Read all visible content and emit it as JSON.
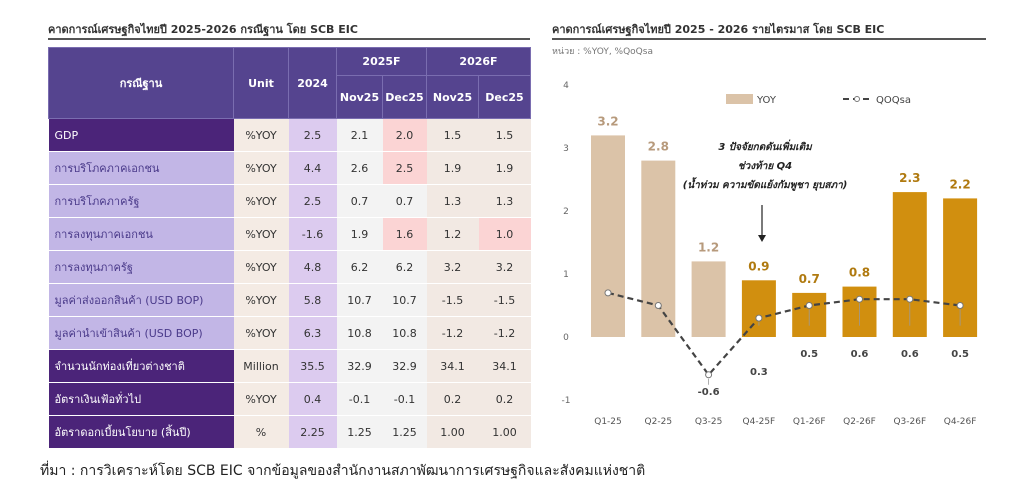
{
  "table": {
    "title": "คาดการณ์เศรษฐกิจไทยปี 2025-2026 กรณีฐาน โดย SCB EIC",
    "headers": {
      "case": "กรณีฐาน",
      "unit": "Unit",
      "y2024": "2024",
      "f2025": "2025F",
      "f2026": "2026F",
      "nov": "Nov25",
      "dec": "Dec25"
    },
    "rows": [
      {
        "label": "GDP",
        "unit": "%YOY",
        "v2024": "2.5",
        "v": [
          "2.1",
          "2.0",
          "1.5",
          "1.5"
        ],
        "style": "dark",
        "hl": [
          1
        ]
      },
      {
        "label": "การบริโภคภาคเอกชน",
        "unit": "%YOY",
        "v2024": "4.4",
        "v": [
          "2.6",
          "2.5",
          "1.9",
          "1.9"
        ],
        "style": "light",
        "hl": [
          1
        ]
      },
      {
        "label": "การบริโภคภาครัฐ",
        "unit": "%YOY",
        "v2024": "2.5",
        "v": [
          "0.7",
          "0.7",
          "1.3",
          "1.3"
        ],
        "style": "light",
        "hl": []
      },
      {
        "label": "การลงทุนภาคเอกชน",
        "unit": "%YOY",
        "v2024": "-1.6",
        "v": [
          "1.9",
          "1.6",
          "1.2",
          "1.0"
        ],
        "style": "light",
        "hl": [
          1,
          3
        ]
      },
      {
        "label": "การลงทุนภาครัฐ",
        "unit": "%YOY",
        "v2024": "4.8",
        "v": [
          "6.2",
          "6.2",
          "3.2",
          "3.2"
        ],
        "style": "light",
        "hl": []
      },
      {
        "label": "มูลค่าส่งออกสินค้า (USD BOP)",
        "unit": "%YOY",
        "v2024": "5.8",
        "v": [
          "10.7",
          "10.7",
          "-1.5",
          "-1.5"
        ],
        "style": "light",
        "hl": []
      },
      {
        "label": "มูลค่านำเข้าสินค้า (USD BOP)",
        "unit": "%YOY",
        "v2024": "6.3",
        "v": [
          "10.8",
          "10.8",
          "-1.2",
          "-1.2"
        ],
        "style": "light",
        "hl": []
      },
      {
        "label": "จำนวนนักท่องเที่ยวต่างชาติ",
        "unit": "Million",
        "v2024": "35.5",
        "v": [
          "32.9",
          "32.9",
          "34.1",
          "34.1"
        ],
        "style": "dark",
        "hl": []
      },
      {
        "label": "อัตราเงินเฟ้อทั่วไป",
        "unit": "%YOY",
        "v2024": "0.4",
        "v": [
          "-0.1",
          "-0.1",
          "0.2",
          "0.2"
        ],
        "style": "dark",
        "hl": []
      },
      {
        "label": "อัตราดอกเบี้ยนโยบาย (สิ้นปี)",
        "unit": "%",
        "v2024": "2.25",
        "v": [
          "1.25",
          "1.25",
          "1.00",
          "1.00"
        ],
        "style": "dark",
        "hl": []
      }
    ]
  },
  "chart_data": {
    "type": "bar+line",
    "title": "คาดการณ์เศรษฐกิจไทยปี 2025 - 2026 รายไตรมาส โดย SCB EIC",
    "subtitle": "หน่วย : %YOY, %QoQsa",
    "categories": [
      "Q1-25",
      "Q2-25",
      "Q3-25",
      "Q4-25F",
      "Q1-26F",
      "Q2-26F",
      "Q3-26F",
      "Q4-26F"
    ],
    "ylim": [
      -1,
      4
    ],
    "yticks": [
      -1,
      0,
      1,
      2,
      3,
      4
    ],
    "series": [
      {
        "name": "YOY",
        "type": "bar",
        "values": [
          3.2,
          2.8,
          1.2,
          0.9,
          0.7,
          0.8,
          2.3,
          2.2
        ],
        "colors": [
          "#dbc3a8",
          "#dbc3a8",
          "#dbc3a8",
          "#d18f0f",
          "#d18f0f",
          "#d18f0f",
          "#d18f0f",
          "#d18f0f"
        ]
      },
      {
        "name": "QOQsa",
        "type": "line",
        "values": [
          0.7,
          0.5,
          -0.6,
          0.3,
          0.5,
          0.6,
          0.6,
          0.5
        ],
        "labels": [
          null,
          null,
          "-0.6",
          "0.3",
          "0.5",
          "0.6",
          "0.6",
          "0.5"
        ],
        "color": "#444444"
      }
    ],
    "annotation": [
      "3 ปัจจัยกดดันเพิ่มเติม",
      "ช่วงท้าย Q4",
      "(น้ำท่วม ความขัดแย้งกัมพูชา ยุบสภา)"
    ],
    "legend": "top"
  },
  "source": "ที่มา : การวิเคราะห์โดย SCB EIC จากข้อมูลของสำนักงานสภาพัฒนาการเศรษฐกิจและสังคมแห่งชาติ"
}
